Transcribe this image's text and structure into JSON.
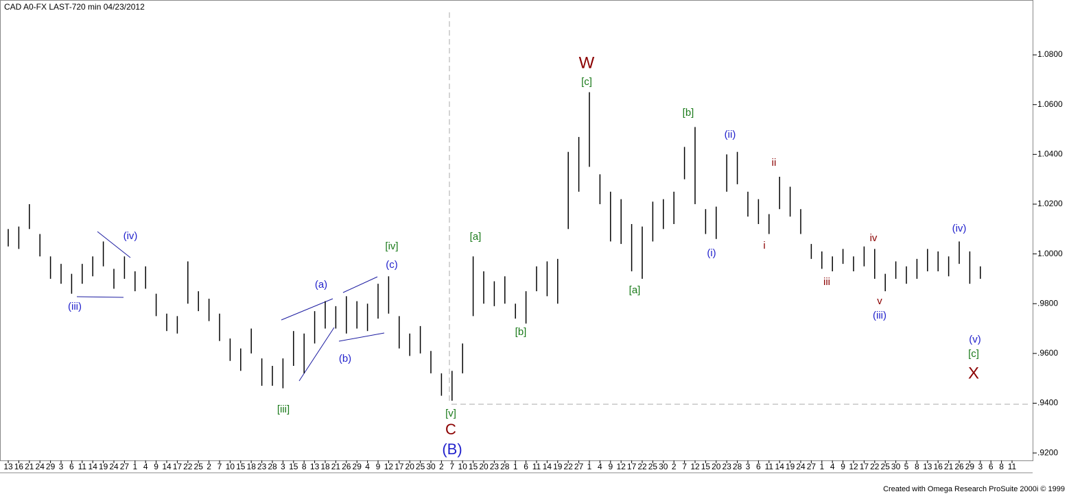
{
  "chart_data": {
    "type": "ohlc",
    "title": "CAD A0-FX LAST-720 min   04/23/2012",
    "footer": "Created with Omega Research ProSuite 2000i © 1999",
    "bar_color": "#000000",
    "categories": [
      "13",
      "16",
      "21",
      "24",
      "29",
      "3",
      "6",
      "11",
      "14",
      "19",
      "24",
      "27",
      "1",
      "4",
      "9",
      "14",
      "17",
      "22",
      "25",
      "2",
      "7",
      "10",
      "15",
      "18",
      "23",
      "28",
      "3",
      "15",
      "8",
      "13",
      "18",
      "21",
      "26",
      "29",
      "4",
      "9",
      "12",
      "17",
      "20",
      "25",
      "30",
      "2",
      "7",
      "10",
      "15",
      "20",
      "23",
      "28",
      "1",
      "6",
      "11",
      "14",
      "19",
      "22",
      "27",
      "1",
      "4",
      "9",
      "12",
      "17",
      "22",
      "25",
      "30",
      "2",
      "7",
      "12",
      "15",
      "20",
      "23",
      "28",
      "3",
      "6",
      "11",
      "14",
      "19",
      "24",
      "27",
      "1",
      "4",
      "9",
      "12",
      "17",
      "22",
      "25",
      "30",
      "5",
      "8",
      "13",
      "16",
      "21",
      "26",
      "29",
      "3",
      "6",
      "8",
      "11"
    ],
    "high": [
      1.01,
      1.011,
      1.02,
      1.008,
      0.999,
      0.996,
      0.992,
      0.996,
      0.999,
      1.005,
      0.994,
      0.999,
      0.993,
      0.995,
      0.984,
      0.976,
      0.975,
      0.997,
      0.985,
      0.982,
      0.976,
      0.966,
      0.962,
      0.97,
      0.958,
      0.955,
      0.958,
      0.969,
      0.968,
      0.977,
      0.981,
      0.979,
      0.983,
      0.981,
      0.98,
      0.988,
      0.991,
      0.975,
      0.968,
      0.971,
      0.961,
      0.952,
      0.953,
      0.964,
      0.999,
      0.993,
      0.989,
      0.991,
      0.98,
      0.985,
      0.995,
      0.997,
      0.998,
      1.041,
      1.047,
      1.065,
      1.032,
      1.025,
      1.022,
      1.012,
      1.011,
      1.021,
      1.022,
      1.025,
      1.043,
      1.051,
      1.018,
      1.019,
      1.04,
      1.041,
      1.025,
      1.022,
      1.016,
      1.031,
      1.027,
      1.018,
      1.004,
      1.001,
      0.999,
      1.002,
      0.999,
      1.003,
      1.002,
      0.992,
      0.997,
      0.995,
      0.998,
      1.002,
      1.001,
      0.999,
      1.005,
      1.001,
      0.995,
      null,
      null,
      null
    ],
    "low": [
      1.003,
      1.002,
      1.01,
      0.999,
      0.99,
      0.988,
      0.984,
      0.988,
      0.991,
      0.995,
      0.986,
      0.99,
      0.985,
      0.986,
      0.975,
      0.969,
      0.968,
      0.98,
      0.977,
      0.973,
      0.965,
      0.957,
      0.953,
      0.96,
      0.947,
      0.947,
      0.946,
      0.955,
      0.952,
      0.964,
      0.97,
      0.97,
      0.968,
      0.97,
      0.969,
      0.974,
      0.976,
      0.962,
      0.959,
      0.96,
      0.952,
      0.943,
      0.941,
      0.952,
      0.975,
      0.98,
      0.979,
      0.98,
      0.974,
      0.972,
      0.985,
      0.983,
      0.98,
      1.01,
      1.025,
      1.035,
      1.02,
      1.005,
      1.004,
      0.993,
      0.99,
      1.005,
      1.01,
      1.012,
      1.03,
      1.02,
      1.008,
      1.006,
      1.025,
      1.028,
      1.015,
      1.012,
      1.008,
      1.018,
      1.015,
      1.008,
      0.998,
      0.994,
      0.993,
      0.996,
      0.993,
      0.995,
      0.99,
      0.985,
      0.99,
      0.988,
      0.99,
      0.993,
      0.993,
      0.991,
      0.996,
      0.988,
      0.99,
      null,
      null,
      null
    ],
    "ylim": [
      0.917,
      1.1015
    ],
    "yticks": [
      {
        "value": 0.92,
        "label": ".9200"
      },
      {
        "value": 0.94,
        "label": ".9400"
      },
      {
        "value": 0.96,
        "label": ".9600"
      },
      {
        "value": 0.98,
        "label": ".9800"
      },
      {
        "value": 1.0,
        "label": "1.0000"
      },
      {
        "value": 1.02,
        "label": "1.0200"
      },
      {
        "value": 1.04,
        "label": "1.0400"
      },
      {
        "value": 1.06,
        "label": "1.0600"
      },
      {
        "value": 1.08,
        "label": "1.0800"
      }
    ],
    "annotations": [
      {
        "text": "W",
        "color": "#8b0000"
      },
      {
        "text": "[c]",
        "color": "#1a7a1a"
      },
      {
        "text": "[b]",
        "color": "#1a7a1a"
      },
      {
        "text": "(ii)",
        "color": "#2222cc"
      },
      {
        "text": "ii",
        "color": "#8b0000"
      },
      {
        "text": "(iv)",
        "color": "#2222cc"
      },
      {
        "text": "[iv]",
        "color": "#1a7a1a"
      },
      {
        "text": "[a]",
        "color": "#1a7a1a"
      },
      {
        "text": "(c)",
        "color": "#2222cc"
      },
      {
        "text": "(a)",
        "color": "#2222cc"
      },
      {
        "text": "(b)",
        "color": "#2222cc"
      },
      {
        "text": "(iii)",
        "color": "#2222cc"
      },
      {
        "text": "[iii]",
        "color": "#1a7a1a"
      },
      {
        "text": "[v]",
        "color": "#1a7a1a"
      },
      {
        "text": "C",
        "color": "#8b0000"
      },
      {
        "text": "(B)",
        "color": "#2222cc"
      },
      {
        "text": "[b]",
        "color": "#1a7a1a"
      },
      {
        "text": "[a]",
        "color": "#1a7a1a"
      },
      {
        "text": "(i)",
        "color": "#2222cc"
      },
      {
        "text": "i",
        "color": "#8b0000"
      },
      {
        "text": "iii",
        "color": "#8b0000"
      },
      {
        "text": "iv",
        "color": "#8b0000"
      },
      {
        "text": "v",
        "color": "#8b0000"
      },
      {
        "text": "(iii)",
        "color": "#2222cc"
      },
      {
        "text": "(iv)",
        "color": "#2222cc"
      },
      {
        "text": "(v)",
        "color": "#2222cc"
      },
      {
        "text": "[c]",
        "color": "#1a7a1a"
      },
      {
        "text": "X",
        "color": "#8b0000"
      }
    ]
  }
}
